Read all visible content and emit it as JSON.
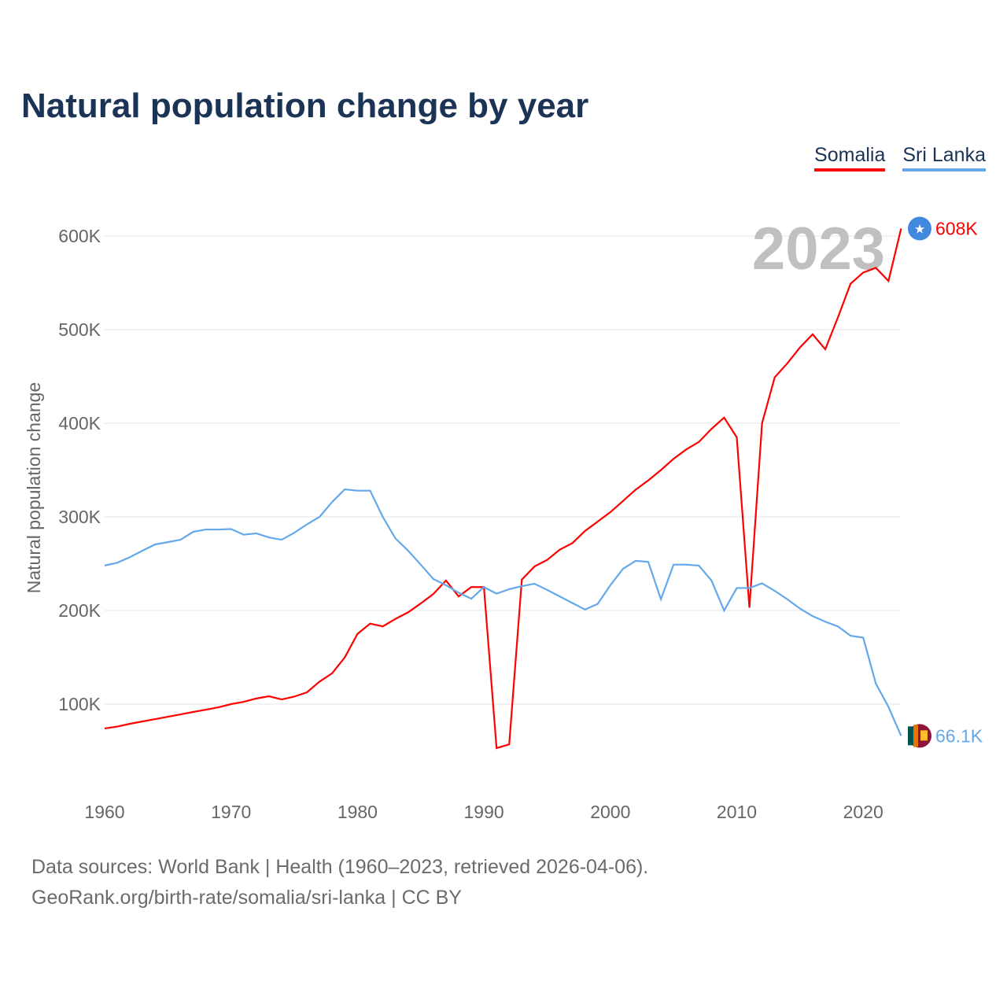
{
  "title": "Natural population change by year",
  "footer": {
    "line1": "Data sources: World Bank | Health (1960–2023, retrieved 2026-04-06).",
    "line2": "GeoRank.org/birth-rate/somalia/sri-lanka | CC BY"
  },
  "chart_data": {
    "type": "line",
    "title": "Natural population change by year",
    "xlabel": "",
    "ylabel": "Natural population change",
    "xlim": [
      1960,
      2023
    ],
    "ylim": [
      0,
      650000
    ],
    "xticks": [
      1960,
      1970,
      1980,
      1990,
      2000,
      2010,
      2020
    ],
    "xtick_labels": [
      "1960",
      "1970",
      "1980",
      "1990",
      "2000",
      "2010",
      "2020"
    ],
    "yticks": [
      100000,
      200000,
      300000,
      400000,
      500000,
      600000
    ],
    "ytick_labels": [
      "100K",
      "200K",
      "300K",
      "400K",
      "500K",
      "600K"
    ],
    "grid": true,
    "legend_placement": "top-right",
    "year_watermark": "2023",
    "x": [
      1960,
      1961,
      1962,
      1963,
      1964,
      1965,
      1966,
      1967,
      1968,
      1969,
      1970,
      1971,
      1972,
      1973,
      1974,
      1975,
      1976,
      1977,
      1978,
      1979,
      1980,
      1981,
      1982,
      1983,
      1984,
      1985,
      1986,
      1987,
      1988,
      1989,
      1990,
      1991,
      1992,
      1993,
      1994,
      1995,
      1996,
      1997,
      1998,
      1999,
      2000,
      2001,
      2002,
      2003,
      2004,
      2005,
      2006,
      2007,
      2008,
      2009,
      2010,
      2011,
      2012,
      2013,
      2014,
      2015,
      2016,
      2017,
      2018,
      2019,
      2020,
      2021,
      2022,
      2023
    ],
    "series": [
      {
        "name": "Somalia",
        "color": "#ff0000",
        "end_label": "608K",
        "values": [
          74000,
          76000,
          79000,
          81500,
          84000,
          86500,
          89000,
          91600,
          94000,
          96600,
          100000,
          102500,
          106000,
          108400,
          105000,
          108000,
          112600,
          124000,
          133000,
          150000,
          175000,
          186000,
          183000,
          191000,
          198000,
          207500,
          217600,
          232000,
          215000,
          225000,
          225000,
          53000,
          57000,
          233000,
          247000,
          254000,
          265000,
          272000,
          285000,
          295000,
          305000,
          317000,
          329000,
          339000,
          350000,
          362000,
          372000,
          380000,
          394000,
          406000,
          385000,
          203000,
          400000,
          449000,
          464000,
          481000,
          495000,
          479000,
          513000,
          549000,
          561000,
          566000,
          552000,
          608000
        ]
      },
      {
        "name": "Sri Lanka",
        "color": "#64a8ec",
        "end_label": "66.1K",
        "values": [
          248000,
          251000,
          257000,
          264000,
          270600,
          273000,
          275600,
          284000,
          286500,
          286500,
          287000,
          281000,
          282400,
          278000,
          275600,
          283000,
          292000,
          300000,
          316000,
          329400,
          328000,
          328000,
          300000,
          277000,
          264000,
          249000,
          233600,
          227000,
          219000,
          212600,
          225000,
          218000,
          222700,
          226000,
          228600,
          222000,
          215000,
          208000,
          201000,
          207000,
          227000,
          244500,
          253000,
          252000,
          212000,
          249000,
          249000,
          248000,
          232000,
          200000,
          224000,
          224000,
          229000,
          221000,
          212000,
          202000,
          194000,
          188000,
          183000,
          173000,
          171000,
          122000,
          97000,
          66100
        ]
      }
    ]
  }
}
